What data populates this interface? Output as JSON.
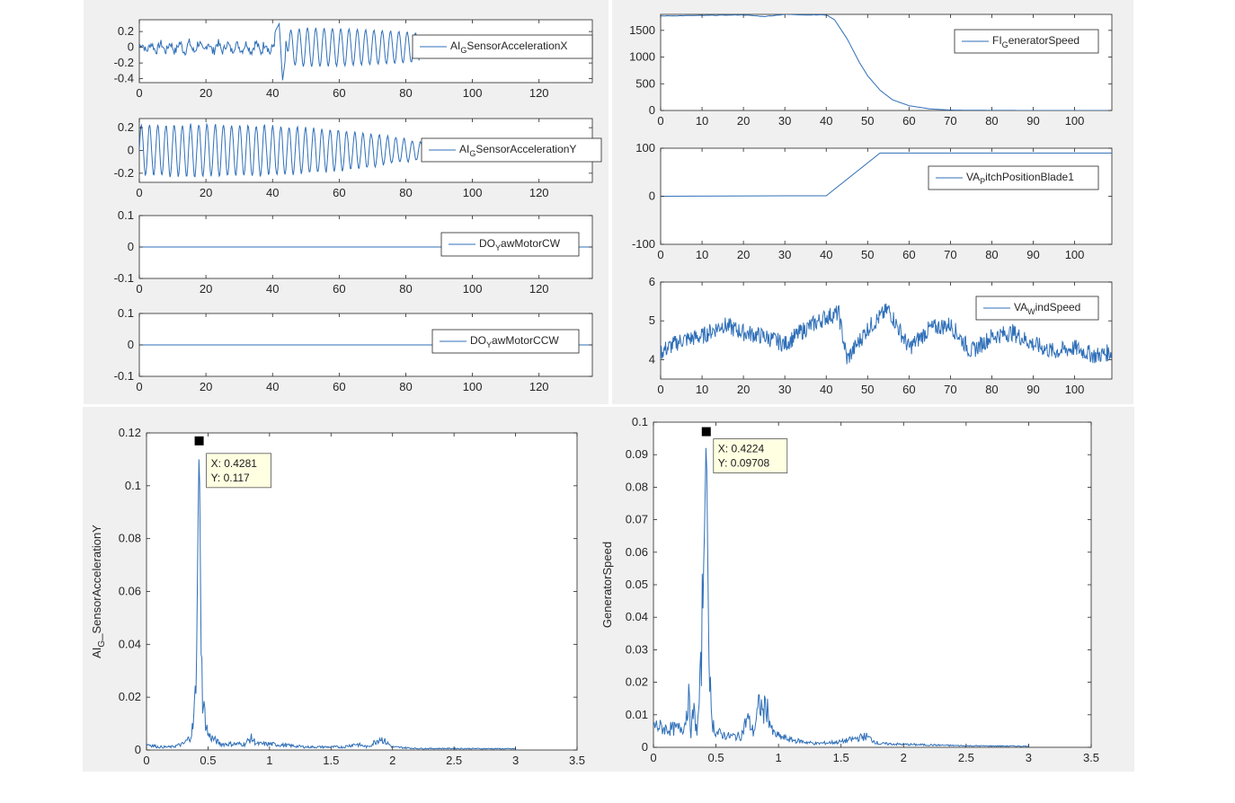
{
  "chart_data": [
    {
      "id": "p1",
      "type": "line",
      "legend": [
        {
          "main": "AI",
          "sub": "G",
          "rest": "SensorAccelerationX"
        }
      ],
      "xlim": [
        0,
        136
      ],
      "ylim": [
        -0.45,
        0.35
      ],
      "xticks": [
        0,
        20,
        40,
        60,
        80,
        100,
        120
      ],
      "yticks": [
        0.2,
        0,
        -0.2,
        -0.4
      ],
      "ytick_labels": [
        "0.2",
        "0",
        "-0.2",
        "-0.4"
      ],
      "series": [
        {
          "x": [
            0,
            10,
            20,
            30,
            40,
            42,
            43,
            45,
            50,
            60,
            70,
            80,
            84
          ],
          "y": [
            0.08,
            0.1,
            0.12,
            0.08,
            0.14,
            0.3,
            -0.42,
            0.22,
            0.25,
            0.24,
            0.22,
            0.2,
            0.18
          ]
        }
      ]
    },
    {
      "id": "p2",
      "type": "line",
      "legend": [
        {
          "main": "AI",
          "sub": "G",
          "rest": "SensorAccelerationY"
        }
      ],
      "xlim": [
        0,
        136
      ],
      "ylim": [
        -0.28,
        0.28
      ],
      "xticks": [
        0,
        20,
        40,
        60,
        80,
        100,
        120
      ],
      "yticks": [
        0.2,
        0,
        -0.2
      ],
      "ytick_labels": [
        "0.2",
        "0",
        "-0.2"
      ],
      "series": [
        {
          "x": [
            0,
            20,
            40,
            60,
            80,
            86
          ],
          "y": [
            0.22,
            0.23,
            0.22,
            0.18,
            0.1,
            0.07
          ]
        }
      ]
    },
    {
      "id": "p3",
      "type": "line",
      "legend": [
        {
          "main": "DO",
          "sub": "Y",
          "rest": "awMotorCW"
        }
      ],
      "xlim": [
        0,
        136
      ],
      "ylim": [
        -0.1,
        0.1
      ],
      "xticks": [
        0,
        20,
        40,
        60,
        80,
        100,
        120
      ],
      "yticks": [
        0.1,
        0,
        -0.1
      ],
      "ytick_labels": [
        "0.1",
        "0",
        "-0.1"
      ],
      "series": [
        {
          "x": [
            0,
            136
          ],
          "y": [
            0,
            0
          ]
        }
      ]
    },
    {
      "id": "p4",
      "type": "line",
      "legend": [
        {
          "main": "DO",
          "sub": "Y",
          "rest": "awMotorCCW"
        }
      ],
      "xlim": [
        0,
        136
      ],
      "ylim": [
        -0.1,
        0.1
      ],
      "xticks": [
        0,
        20,
        40,
        60,
        80,
        100,
        120
      ],
      "yticks": [
        0.1,
        0,
        -0.1
      ],
      "ytick_labels": [
        "0.1",
        "0",
        "-0.1"
      ],
      "series": [
        {
          "x": [
            0,
            136
          ],
          "y": [
            0,
            0
          ]
        }
      ]
    },
    {
      "id": "p5",
      "type": "line",
      "legend": [
        {
          "main": "FI",
          "sub": "G",
          "rest": "eneratorSpeed"
        }
      ],
      "xlim": [
        0,
        109
      ],
      "ylim": [
        0,
        1800
      ],
      "xticks": [
        0,
        10,
        20,
        30,
        40,
        50,
        60,
        70,
        80,
        90,
        100
      ],
      "yticks": [
        1500,
        1000,
        500,
        0
      ],
      "ytick_labels": [
        "1500",
        "1000",
        "500",
        "0"
      ],
      "series": [
        {
          "x": [
            0,
            10,
            20,
            25,
            30,
            35,
            40,
            42,
            45,
            48,
            50,
            53,
            56,
            60,
            65,
            70,
            75,
            80,
            90,
            100,
            109
          ],
          "y": [
            1770,
            1780,
            1790,
            1760,
            1800,
            1790,
            1790,
            1700,
            1350,
            900,
            650,
            380,
            200,
            90,
            30,
            8,
            4,
            2,
            0,
            0,
            0
          ]
        }
      ]
    },
    {
      "id": "p6",
      "type": "line",
      "legend": [
        {
          "main": "VA",
          "sub": "P",
          "rest": "itchPositionBlade1"
        }
      ],
      "xlim": [
        0,
        109
      ],
      "ylim": [
        -100,
        100
      ],
      "xticks": [
        0,
        10,
        20,
        30,
        40,
        50,
        60,
        70,
        80,
        90,
        100
      ],
      "yticks": [
        100,
        0,
        -100
      ],
      "ytick_labels": [
        "100",
        "0",
        "-100"
      ],
      "series": [
        {
          "x": [
            0,
            30,
            40,
            53,
            109
          ],
          "y": [
            0,
            1,
            1,
            90,
            90
          ]
        }
      ]
    },
    {
      "id": "p7",
      "type": "line",
      "legend": [
        {
          "main": "VA",
          "sub": "W",
          "rest": "indSpeed"
        }
      ],
      "xlim": [
        0,
        109
      ],
      "ylim": [
        3.5,
        6
      ],
      "xticks": [
        0,
        10,
        20,
        30,
        40,
        50,
        60,
        70,
        80,
        90,
        100
      ],
      "yticks": [
        6,
        5,
        4
      ],
      "ytick_labels": [
        "6",
        "5",
        "4"
      ],
      "series": [
        {
          "x": [
            0,
            5,
            10,
            15,
            20,
            25,
            30,
            35,
            40,
            43,
            45,
            50,
            55,
            60,
            65,
            70,
            75,
            80,
            85,
            90,
            95,
            100,
            105,
            109
          ],
          "y": [
            4.2,
            4.5,
            4.6,
            4.9,
            4.7,
            4.6,
            4.4,
            4.8,
            5.1,
            5.2,
            4.0,
            4.8,
            5.3,
            4.3,
            4.8,
            4.9,
            4.2,
            4.6,
            4.7,
            4.4,
            4.2,
            4.3,
            4.1,
            4.2
          ]
        }
      ]
    },
    {
      "id": "p8",
      "type": "line",
      "ylabel": {
        "main": "AI",
        "sub": "G",
        "rest": "_SensorAccelerationY"
      },
      "xlim": [
        0,
        3.5
      ],
      "ylim": [
        0,
        0.12
      ],
      "xticks": [
        0,
        0.5,
        1,
        1.5,
        2,
        2.5,
        3,
        3.5
      ],
      "xtick_labels": [
        "0",
        "0.5",
        "1",
        "1.5",
        "2",
        "2.5",
        "3",
        "3.5"
      ],
      "yticks": [
        0,
        0.02,
        0.04,
        0.06,
        0.08,
        0.1,
        0.12
      ],
      "ytick_labels": [
        "0",
        "0.02",
        "0.04",
        "0.06",
        "0.08",
        "0.1",
        "0.12"
      ],
      "series": [
        {
          "x": [
            0,
            0.1,
            0.2,
            0.3,
            0.35,
            0.38,
            0.4,
            0.41,
            0.42,
            0.4281,
            0.435,
            0.445,
            0.46,
            0.5,
            0.6,
            0.7,
            0.8,
            0.85,
            0.9,
            1.0,
            1.3,
            1.6,
            1.7,
            1.8,
            1.9,
            2.0,
            2.2,
            2.5,
            3.0
          ],
          "y": [
            0.002,
            0.001,
            0.001,
            0.002,
            0.004,
            0.008,
            0.02,
            0.05,
            0.09,
            0.117,
            0.09,
            0.03,
            0.015,
            0.005,
            0.002,
            0.002,
            0.002,
            0.004,
            0.002,
            0.002,
            0.001,
            0.001,
            0.002,
            0.001,
            0.004,
            0.001,
            0.0005,
            0.0005,
            0.0004
          ]
        }
      ],
      "datatip": {
        "x": 0.4281,
        "y": 0.117,
        "x_label": "X: 0.4281",
        "y_label": "Y: 0.117"
      }
    },
    {
      "id": "p9",
      "type": "line",
      "ylabel": {
        "main": "GeneratorSpeed",
        "sub": "",
        "rest": ""
      },
      "xlim": [
        0,
        3.5
      ],
      "ylim": [
        0,
        0.1
      ],
      "xticks": [
        0,
        0.5,
        1,
        1.5,
        2,
        2.5,
        3,
        3.5
      ],
      "xtick_labels": [
        "0",
        "0.5",
        "1",
        "1.5",
        "2",
        "2.5",
        "3",
        "3.5"
      ],
      "yticks": [
        0,
        0.01,
        0.02,
        0.03,
        0.04,
        0.05,
        0.06,
        0.07,
        0.08,
        0.09,
        0.1
      ],
      "ytick_labels": [
        "0",
        "0.01",
        "0.02",
        "0.03",
        "0.04",
        "0.05",
        "0.06",
        "0.07",
        "0.08",
        "0.09",
        "0.1"
      ],
      "series": [
        {
          "x": [
            0,
            0.1,
            0.2,
            0.25,
            0.28,
            0.3,
            0.32,
            0.35,
            0.38,
            0.4,
            0.4224,
            0.44,
            0.46,
            0.5,
            0.6,
            0.7,
            0.75,
            0.8,
            0.85,
            0.88,
            0.9,
            0.95,
            1.0,
            1.1,
            1.3,
            1.5,
            1.7,
            1.8,
            2.0,
            2.5,
            3.0
          ],
          "y": [
            0.006,
            0.005,
            0.005,
            0.006,
            0.014,
            0.004,
            0.01,
            0.004,
            0.02,
            0.05,
            0.09708,
            0.04,
            0.008,
            0.004,
            0.003,
            0.003,
            0.008,
            0.004,
            0.012,
            0.009,
            0.012,
            0.004,
            0.003,
            0.002,
            0.001,
            0.0015,
            0.003,
            0.001,
            0.0008,
            0.0004,
            0.0003
          ]
        }
      ],
      "datatip": {
        "x": 0.4224,
        "y": 0.09708,
        "x_label": "X: 0.4224",
        "y_label": "Y: 0.09708"
      }
    }
  ]
}
